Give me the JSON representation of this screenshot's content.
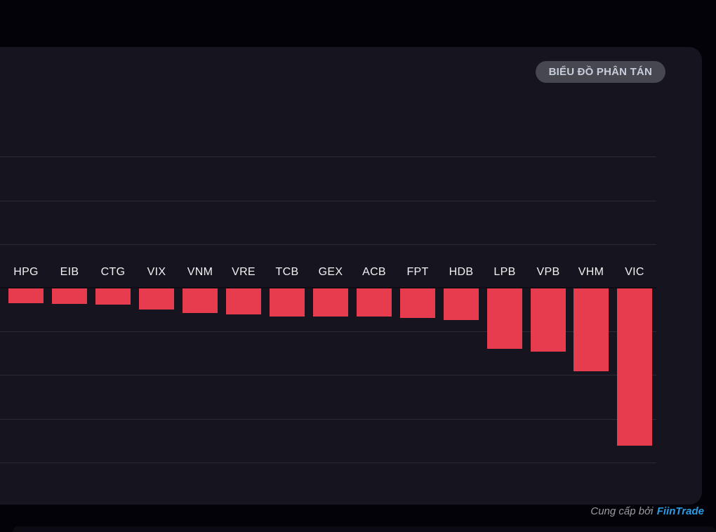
{
  "toolbar": {
    "scatter_button_label": "BIỂU ĐỒ PHÂN TÁN",
    "button_bg": "#47474f",
    "button_text_color": "#c7cdda"
  },
  "footer": {
    "provider_prefix": "Cung cấp bởi",
    "provider_name": "FiinTrade",
    "prefix_color": "#9b9ba3",
    "brand_color": "#2d9ce4"
  },
  "colors": {
    "page_bg": "#030209",
    "panel_bg": "#16151f",
    "gridline": "#2b2a35",
    "zero_line": "#0d0c14",
    "bar_negative": "#e73c4d",
    "tick_label": "#f2f2f4"
  },
  "chart_data": {
    "type": "bar",
    "orientation": "vertical",
    "title": "",
    "xlabel": "",
    "ylabel": "",
    "categories": [
      "HPG",
      "EIB",
      "CTG",
      "VIX",
      "VNM",
      "VRE",
      "TCB",
      "GEX",
      "ACB",
      "FPT",
      "HDB",
      "LPB",
      "VPB",
      "VHM",
      "VIC"
    ],
    "values": [
      -0.33,
      -0.35,
      -0.37,
      -0.48,
      -0.57,
      -0.6,
      -0.64,
      -0.65,
      -0.65,
      -0.68,
      -0.72,
      -1.38,
      -1.44,
      -1.9,
      -3.6
    ],
    "ylim": [
      -5,
      5.5
    ],
    "grid": true,
    "gridline_values": [
      3,
      2,
      1,
      0,
      -1,
      -2,
      -3,
      -4
    ],
    "legend": "none",
    "bar_color": "#e73c4d"
  }
}
